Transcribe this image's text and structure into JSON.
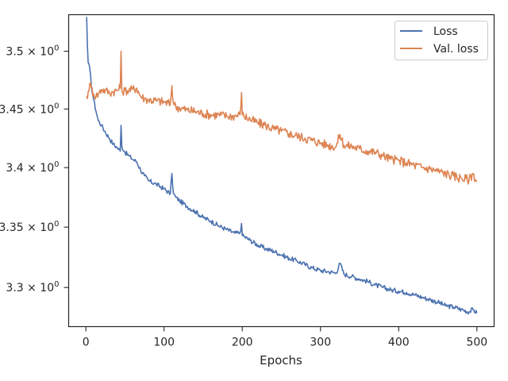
{
  "chart_data": {
    "type": "line",
    "title": "",
    "xlabel": "Epochs",
    "ylabel": "",
    "yscale": "log",
    "xlim": [
      -22,
      522
    ],
    "ylim": [
      3.268,
      3.532
    ],
    "x_ticks": [
      0,
      100,
      200,
      300,
      400,
      500
    ],
    "x_tick_labels": [
      "0",
      "100",
      "200",
      "300",
      "400",
      "500"
    ],
    "y_ticks": [
      3.3,
      3.35,
      3.4,
      3.45,
      3.5
    ],
    "y_tick_labels": [
      "3.3",
      "3.35",
      "3.4",
      "3.45",
      "3.5"
    ],
    "y_tick_suffix": "× 10",
    "y_tick_exponent": "0",
    "grid": false,
    "legend": "top-right",
    "colors": {
      "Loss": "#4c72b0",
      "Val. loss": "#dd8452",
      "axes": "#262626"
    },
    "x": [
      1,
      2,
      3,
      5,
      7,
      10,
      13,
      16,
      20,
      25,
      30,
      35,
      40,
      44,
      45,
      46,
      50,
      55,
      60,
      65,
      70,
      75,
      80,
      90,
      100,
      108,
      110,
      112,
      115,
      120,
      130,
      140,
      150,
      160,
      170,
      180,
      190,
      197,
      199,
      200,
      210,
      220,
      230,
      240,
      250,
      260,
      270,
      280,
      290,
      300,
      310,
      320,
      325,
      330,
      340,
      350,
      360,
      370,
      380,
      390,
      400,
      410,
      420,
      430,
      440,
      450,
      460,
      470,
      480,
      490,
      495,
      500
    ],
    "series": [
      {
        "name": "Loss",
        "values": [
          3.53,
          3.505,
          3.49,
          3.485,
          3.47,
          3.458,
          3.448,
          3.44,
          3.436,
          3.43,
          3.425,
          3.42,
          3.417,
          3.414,
          3.436,
          3.418,
          3.413,
          3.41,
          3.407,
          3.405,
          3.398,
          3.393,
          3.389,
          3.386,
          3.382,
          3.378,
          3.395,
          3.378,
          3.375,
          3.372,
          3.367,
          3.363,
          3.358,
          3.355,
          3.351,
          3.348,
          3.345,
          3.345,
          3.353,
          3.343,
          3.339,
          3.335,
          3.332,
          3.33,
          3.327,
          3.324,
          3.322,
          3.319,
          3.316,
          3.314,
          3.313,
          3.312,
          3.32,
          3.311,
          3.309,
          3.307,
          3.305,
          3.302,
          3.3,
          3.298,
          3.297,
          3.296,
          3.294,
          3.292,
          3.29,
          3.288,
          3.285,
          3.284,
          3.282,
          3.28,
          3.282,
          3.279
        ]
      },
      {
        "name": "Val. loss",
        "values": [
          3.461,
          3.459,
          3.465,
          3.472,
          3.468,
          3.463,
          3.461,
          3.463,
          3.467,
          3.466,
          3.464,
          3.465,
          3.466,
          3.468,
          3.5,
          3.465,
          3.466,
          3.466,
          3.467,
          3.468,
          3.461,
          3.459,
          3.458,
          3.457,
          3.456,
          3.454,
          3.47,
          3.455,
          3.452,
          3.451,
          3.449,
          3.448,
          3.446,
          3.445,
          3.445,
          3.444,
          3.444,
          3.445,
          3.464,
          3.445,
          3.441,
          3.438,
          3.436,
          3.433,
          3.431,
          3.429,
          3.427,
          3.425,
          3.423,
          3.421,
          3.419,
          3.418,
          3.428,
          3.419,
          3.418,
          3.416,
          3.414,
          3.413,
          3.41,
          3.407,
          3.406,
          3.404,
          3.402,
          3.4,
          3.399,
          3.397,
          3.395,
          3.393,
          3.391,
          3.39,
          3.395,
          3.388
        ]
      }
    ]
  }
}
